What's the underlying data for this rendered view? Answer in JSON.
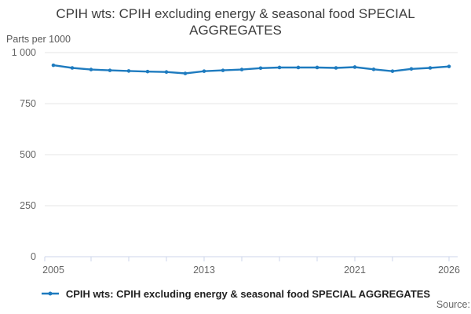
{
  "title": "CPIH wts: CPIH excluding energy & seasonal food SPECIAL AGGREGATES",
  "unit_label": "Parts per 1000",
  "source_label": "Source:",
  "legend": {
    "label": "CPIH wts: CPIH excluding energy & seasonal food SPECIAL AGGREGATES"
  },
  "colors": {
    "line": "#1e7bbf",
    "marker": "#1e7bbf",
    "grid": "#e6e6e6",
    "axis": "#ccd6eb",
    "tick_label": "#666666",
    "title_text": "#3d3d3d",
    "legend_text": "#1f1f1f"
  },
  "chart_data": {
    "type": "line",
    "title": "CPIH wts: CPIH excluding energy & seasonal food SPECIAL AGGREGATES",
    "xlabel": "",
    "ylabel": "Parts per 1000",
    "ylim": [
      0,
      1000
    ],
    "grid": true,
    "legend_position": "bottom",
    "x": [
      2005,
      2006,
      2007,
      2008,
      2009,
      2010,
      2011,
      2012,
      2013,
      2014,
      2015,
      2016,
      2017,
      2018,
      2019,
      2020,
      2021,
      2022,
      2023,
      2024,
      2025,
      2026
    ],
    "series": [
      {
        "name": "CPIH wts: CPIH excluding energy & seasonal food SPECIAL AGGREGATES",
        "values": [
          938,
          925,
          917,
          913,
          910,
          907,
          905,
          898,
          909,
          913,
          917,
          924,
          927,
          927,
          927,
          925,
          929,
          918,
          909,
          920,
          925,
          932
        ]
      }
    ],
    "yticks": [
      {
        "value": 0,
        "label": "0"
      },
      {
        "value": 250,
        "label": "250"
      },
      {
        "value": 500,
        "label": "500"
      },
      {
        "value": 750,
        "label": "750"
      },
      {
        "value": 1000,
        "label": "1 000"
      }
    ],
    "xtick_marks": [
      2007,
      2009,
      2011,
      2013,
      2015,
      2017,
      2019,
      2021,
      2023,
      2026
    ],
    "xtick_labels": [
      {
        "value": 2005,
        "label": "2005"
      },
      {
        "value": 2013,
        "label": "2013"
      },
      {
        "value": 2021,
        "label": "2021"
      },
      {
        "value": 2026,
        "label": "2026"
      }
    ]
  }
}
